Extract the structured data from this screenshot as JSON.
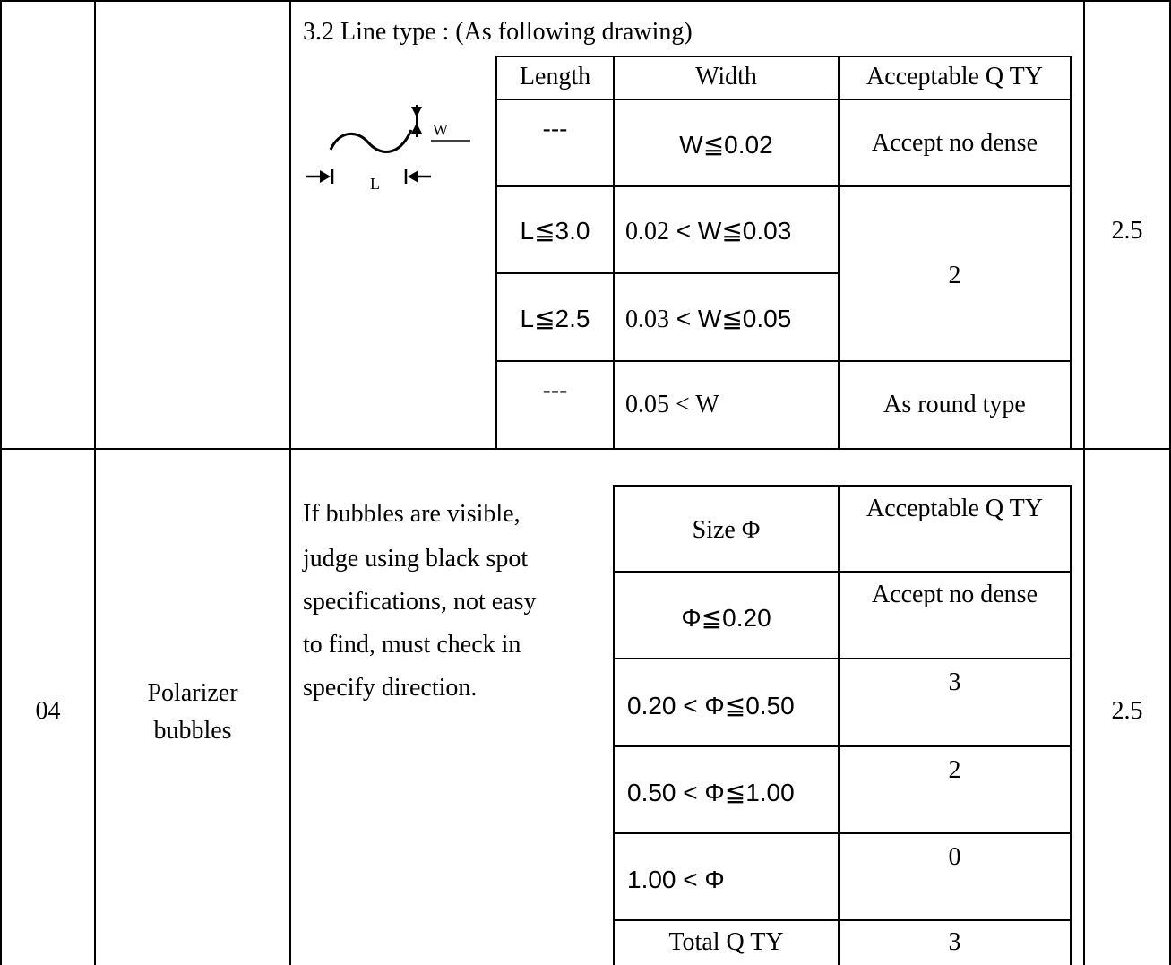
{
  "section_3_2": {
    "heading": "3.2 Line type : (As following drawing)",
    "diagram_labels": {
      "w": "W",
      "l": "L"
    },
    "headers": {
      "length": "Length",
      "width": "Width",
      "qty": "Acceptable Q TY"
    },
    "rows": [
      {
        "length": "---",
        "width": "W≦0.02",
        "qty": "Accept no dense"
      },
      {
        "length": "L≦3.0",
        "width_a": "0.02",
        "width_b": " < W≦0.03"
      },
      {
        "length": "L≦2.5",
        "width_a": "0.03",
        "width_b": " < W≦0.05"
      },
      {
        "length": "---",
        "width": "0.05 < W",
        "qty": "As round type"
      }
    ],
    "merged_qty": "2",
    "score": "2.5"
  },
  "item_04": {
    "no": "04",
    "name_line1": "Polarizer",
    "name_line2": "bubbles",
    "description": [
      "If bubbles are visible,",
      "judge using black spot",
      "specifications, not easy",
      "to find, must check in",
      "specify direction."
    ],
    "headers": {
      "size": "Size Φ",
      "qty": "Acceptable Q TY"
    },
    "rows": [
      {
        "size": "Φ≦0.20",
        "qty": "Accept no dense"
      },
      {
        "size": "0.20 < Φ≦0.50",
        "qty": "3"
      },
      {
        "size": "0.50 < Φ≦1.00",
        "qty": "2"
      },
      {
        "size": "1.00 < Φ",
        "qty": "0"
      }
    ],
    "total_label": "Total Q TY",
    "total_value": "3",
    "score": "2.5"
  }
}
